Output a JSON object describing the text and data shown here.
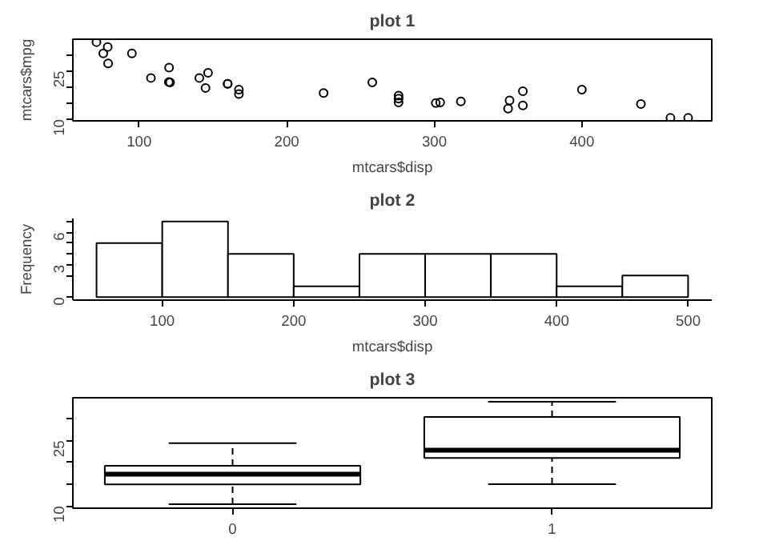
{
  "chart_data": [
    {
      "type": "scatter",
      "title": "plot 1",
      "xlabel": "mtcars$disp",
      "ylabel": "mtcars$mpg",
      "marker": "circle",
      "color": "#000000",
      "x": [
        160,
        160,
        108,
        258,
        360,
        225,
        360,
        146.7,
        140.8,
        167.6,
        167.6,
        275.8,
        275.8,
        275.8,
        472,
        460,
        440,
        78.7,
        75.7,
        71.1,
        120.1,
        318,
        304,
        350,
        400,
        79,
        120.3,
        95.1,
        351,
        145,
        301,
        121
      ],
      "values": [
        21.0,
        21.0,
        22.8,
        21.4,
        18.7,
        18.1,
        14.3,
        24.4,
        22.8,
        19.2,
        17.8,
        16.4,
        17.3,
        15.2,
        10.4,
        10.4,
        14.7,
        32.4,
        30.4,
        33.9,
        21.5,
        15.5,
        15.2,
        13.3,
        19.2,
        27.3,
        26.0,
        30.4,
        15.8,
        19.7,
        15.0,
        21.4
      ],
      "xlim": [
        55.1,
        488
      ],
      "ylim": [
        9.5,
        34.8
      ],
      "xticks": [
        100,
        200,
        300,
        400
      ],
      "yticks": [
        10,
        {
          "value": 15,
          "label": null
        },
        {
          "value": 20,
          "label": null
        },
        25,
        {
          "value": 30,
          "label": null
        }
      ]
    },
    {
      "type": "histogram",
      "title": "plot 2",
      "xlabel": "mtcars$disp",
      "ylabel": "Frequency",
      "bins": [
        50,
        100,
        150,
        200,
        250,
        300,
        350,
        400,
        450,
        500
      ],
      "values": [
        5,
        7,
        4,
        1,
        4,
        4,
        4,
        1,
        2
      ],
      "xlim": [
        32,
        518
      ],
      "ylim": [
        -0.28,
        7.28
      ],
      "xticks": [
        100,
        200,
        300,
        400,
        500
      ],
      "yticks": [
        0,
        {
          "value": 2,
          "label": null
        },
        3,
        {
          "value": 4,
          "label": null
        },
        {
          "value": 5,
          "label": null
        },
        6,
        {
          "value": 7,
          "label": null
        }
      ]
    },
    {
      "type": "box",
      "title": "plot 3",
      "categories": [
        "0",
        "1"
      ],
      "boxes": [
        {
          "low": 10.4,
          "q1": 14.95,
          "median": 17.3,
          "q3": 19.2,
          "high": 24.4
        },
        {
          "low": 15.0,
          "q1": 21.0,
          "median": 22.8,
          "q3": 30.4,
          "high": 33.9
        }
      ],
      "ylim": [
        9.5,
        34.8
      ],
      "yticks": [
        10,
        {
          "value": 15,
          "label": null
        },
        {
          "value": 20,
          "label": null
        },
        25,
        {
          "value": 30,
          "label": null
        }
      ]
    }
  ]
}
